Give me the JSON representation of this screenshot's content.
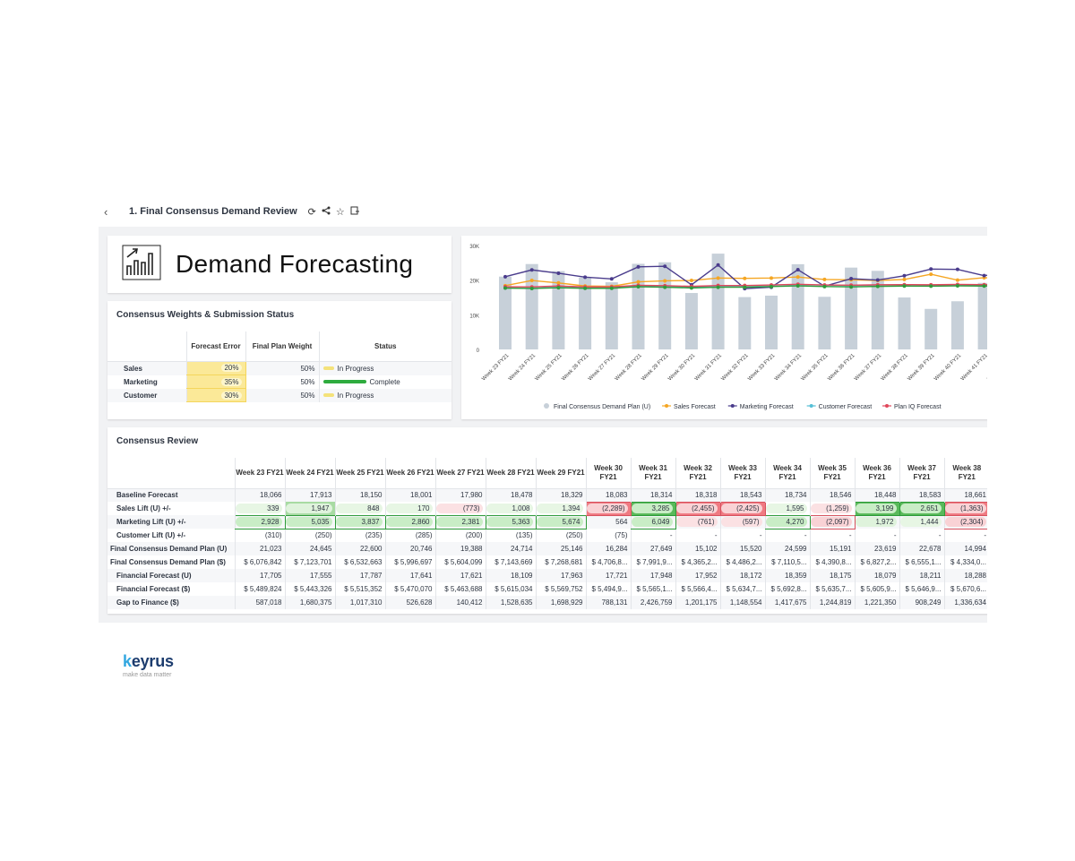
{
  "header": {
    "back_icon": "chevron-left-icon",
    "title": "1. Final Consensus Demand Review",
    "icons": [
      "refresh-icon",
      "share-icon",
      "star-icon",
      "bookmark-add-icon"
    ]
  },
  "title_card": {
    "icon": "bar-chart-trend-icon",
    "title": "Demand Forecasting"
  },
  "weights": {
    "title": "Consensus Weights & Submission Status",
    "columns": [
      "",
      "Forecast Error",
      "Final Plan Weight",
      "Status"
    ],
    "rows": [
      {
        "label": "Sales",
        "forecast_error": "20%",
        "weight": "50%",
        "status": "In Progress",
        "status_color": "#f4e27a",
        "progress": 0.25
      },
      {
        "label": "Marketing",
        "forecast_error": "35%",
        "weight": "50%",
        "status": "Complete",
        "status_color": "#2eab3e",
        "progress": 1.0
      },
      {
        "label": "Customer",
        "forecast_error": "30%",
        "weight": "50%",
        "status": "In Progress",
        "status_color": "#f4e27a",
        "progress": 0.25
      }
    ]
  },
  "chart_data": {
    "type": "bar",
    "title": "",
    "xlabel": "",
    "ylabel": "",
    "ylim": [
      0,
      30000
    ],
    "yticks": [
      "0",
      "10K",
      "20K",
      "30K"
    ],
    "categories": [
      "Week 23 FY21",
      "Week 24 FY21",
      "Week 25 FY21",
      "Week 26 FY21",
      "Week 27 FY21",
      "Week 28 FY21",
      "Week 29 FY21",
      "Week 30 FY21",
      "Week 31 FY21",
      "Week 32 FY21",
      "Week 33 FY21",
      "Week 34 FY21",
      "Week 35 FY21",
      "Week 36 FY21",
      "Week 37 FY21",
      "Week 38 FY21",
      "Week 39 FY21",
      "Week 40 FY21",
      "Week 41 FY21",
      "Week 42 FY21"
    ],
    "legend_position": "bottom",
    "series": [
      {
        "name": "Final Consensus Demand Plan (U)",
        "kind": "bar",
        "color": "#c7d0d9",
        "values": [
          21023,
          24645,
          22600,
          20746,
          19388,
          24714,
          25146,
          16284,
          27649,
          15102,
          15520,
          24599,
          15191,
          23619,
          22678,
          14994,
          11700,
          13900,
          19200,
          18500
        ]
      },
      {
        "name": "Sales Forecast",
        "kind": "line",
        "color": "#f5a623",
        "values": [
          18400,
          19900,
          19200,
          18300,
          18200,
          19500,
          19800,
          19900,
          20600,
          20500,
          20600,
          20900,
          20200,
          20100,
          19900,
          20200,
          21700,
          20000,
          20700,
          20400
        ]
      },
      {
        "name": "Marketing Forecast",
        "kind": "line",
        "color": "#4a3c8c",
        "values": [
          20994,
          22948,
          21987,
          20861,
          20361,
          23841,
          24003,
          18647,
          24363,
          17557,
          17946,
          23004,
          18255,
          20420,
          20027,
          21261,
          23200,
          23100,
          21300,
          22400
        ]
      },
      {
        "name": "Customer Forecast",
        "kind": "line",
        "color": "#55bfd6",
        "values": [
          17756,
          17663,
          17915,
          17716,
          17780,
          18343,
          18079,
          18008,
          18314,
          18318,
          18543,
          18734,
          18546,
          18448,
          18583,
          18661,
          18500,
          18600,
          18500,
          18600
        ]
      },
      {
        "name": "Plan IQ Forecast",
        "kind": "line",
        "color": "#e0475a",
        "values": [
          18100,
          18050,
          18300,
          18050,
          18050,
          18500,
          18400,
          18200,
          18450,
          18450,
          18600,
          18800,
          18600,
          18550,
          18650,
          18700,
          18650,
          18750,
          18700,
          18750
        ]
      },
      {
        "name": "",
        "kind": "line",
        "color": "#2e9b3a",
        "values": [
          17700,
          17600,
          17800,
          17650,
          17650,
          18100,
          17950,
          17750,
          17950,
          17950,
          18150,
          18350,
          18150,
          18050,
          18200,
          18300,
          18250,
          18350,
          18300,
          18350
        ]
      }
    ]
  },
  "review": {
    "title": "Consensus Review",
    "columns": [
      [
        "Week 23 FY21"
      ],
      [
        "Week 24 FY21"
      ],
      [
        "Week 25 FY21"
      ],
      [
        "Week 26 FY21"
      ],
      [
        "Week 27 FY21"
      ],
      [
        "Week 28 FY21"
      ],
      [
        "Week 29 FY21"
      ],
      [
        "Week 30",
        "FY21"
      ],
      [
        "Week 31",
        "FY21"
      ],
      [
        "Week 32",
        "FY21"
      ],
      [
        "Week 33",
        "FY21"
      ],
      [
        "Week 34",
        "FY21"
      ],
      [
        "Week 35",
        "FY21"
      ],
      [
        "Week 36",
        "FY21"
      ],
      [
        "Week 37",
        "FY21"
      ],
      [
        "Week 38",
        "FY21"
      ]
    ],
    "rows": [
      {
        "label": "Baseline Forecast",
        "values": [
          "18,066",
          "17,913",
          "18,150",
          "18,001",
          "17,980",
          "18,478",
          "18,329",
          "18,083",
          "18,314",
          "18,318",
          "18,543",
          "18,734",
          "18,546",
          "18,448",
          "18,583",
          "18,661"
        ]
      },
      {
        "label": "Sales Lift (U) +/-",
        "values": [
          "339",
          "1,947",
          "848",
          "170",
          "(773)",
          "1,008",
          "1,394",
          "(2,289)",
          "3,285",
          "(2,455)",
          "(2,425)",
          "1,595",
          "(1,259)",
          "3,199",
          "2,651",
          "(1,363)"
        ],
        "styles": [
          "g1",
          "g2",
          "g1",
          "g1",
          "r1",
          "g1",
          "g1",
          "r3",
          "g3",
          "r3",
          "r3",
          "g1",
          "r1",
          "g3",
          "g3",
          "r3"
        ]
      },
      {
        "label": "Marketing Lift (U) +/-",
        "values": [
          "2,928",
          "5,035",
          "3,837",
          "2,860",
          "2,381",
          "5,363",
          "5,674",
          "564",
          "6,049",
          "(761)",
          "(597)",
          "4,270",
          "(2,097)",
          "1,972",
          "1,444",
          "(2,304)"
        ],
        "styles": [
          "g3",
          "g3",
          "g3",
          "g3",
          "g3",
          "g3",
          "g3",
          "",
          "g3",
          "r1",
          "r1",
          "g3",
          "r3",
          "g2",
          "g1",
          "r3"
        ]
      },
      {
        "label": "Customer Lift (U) +/-",
        "values": [
          "(310)",
          "(250)",
          "(235)",
          "(285)",
          "(200)",
          "(135)",
          "(250)",
          "(75)",
          "-",
          "-",
          "-",
          "-",
          "-",
          "-",
          "-",
          "-"
        ]
      },
      {
        "label": "Final Consensus Demand Plan (U)",
        "outdent": true,
        "values": [
          "21,023",
          "24,645",
          "22,600",
          "20,746",
          "19,388",
          "24,714",
          "25,146",
          "16,284",
          "27,649",
          "15,102",
          "15,520",
          "24,599",
          "15,191",
          "23,619",
          "22,678",
          "14,994"
        ]
      },
      {
        "label": "Final Consensus Demand Plan ($)",
        "outdent": true,
        "values": [
          "$ 6,076,842",
          "$ 7,123,701",
          "$ 6,532,663",
          "$ 5,996,697",
          "$ 5,604,099",
          "$ 7,143,669",
          "$ 7,268,681",
          "$ 4,706,8...",
          "$ 7,991,9...",
          "$ 4,365,2...",
          "$ 4,486,2...",
          "$ 7,110,5...",
          "$ 4,390,8...",
          "$ 6,827,2...",
          "$ 6,555,1...",
          "$ 4,334,0..."
        ]
      },
      {
        "label": "Financial Forecast (U)",
        "values": [
          "17,705",
          "17,555",
          "17,787",
          "17,641",
          "17,621",
          "18,109",
          "17,963",
          "17,721",
          "17,948",
          "17,952",
          "18,172",
          "18,359",
          "18,175",
          "18,079",
          "18,211",
          "18,288"
        ]
      },
      {
        "label": "Financial Forecast ($)",
        "values": [
          "$ 5,489,824",
          "$ 5,443,326",
          "$ 5,515,352",
          "$ 5,470,070",
          "$ 5,463,688",
          "$ 5,615,034",
          "$ 5,569,752",
          "$ 5,494,9...",
          "$ 5,565,1...",
          "$ 5,566,4...",
          "$ 5,634,7...",
          "$ 5,692,8...",
          "$ 5,635,7...",
          "$ 5,605,9...",
          "$ 5,646,9...",
          "$ 5,670,6..."
        ]
      },
      {
        "label": "Gap to Finance ($)",
        "values": [
          "587,018",
          "1,680,375",
          "1,017,310",
          "526,628",
          "140,412",
          "1,528,635",
          "1,698,929",
          "788,131",
          "2,426,759",
          "1,201,175",
          "1,148,554",
          "1,417,675",
          "1,244,819",
          "1,221,350",
          "908,249",
          "1,336,634"
        ]
      }
    ]
  },
  "brand": {
    "name": "keyrus",
    "tagline": "make data matter",
    "accent": "#32a7e0"
  }
}
